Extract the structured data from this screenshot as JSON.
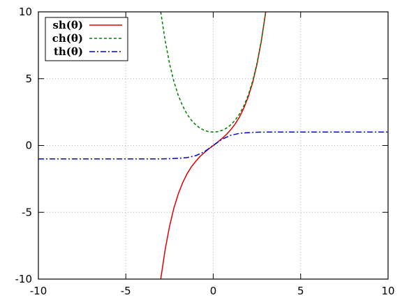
{
  "chart_data": {
    "type": "line",
    "title": "",
    "xlabel": "",
    "ylabel": "",
    "xlim": [
      -10,
      10
    ],
    "ylim": [
      -10,
      10
    ],
    "grid": true,
    "legend_placement": "top-left",
    "x_ticks": [
      {
        "value": -10,
        "label": "-10"
      },
      {
        "value": -5,
        "label": "-5"
      },
      {
        "value": 0,
        "label": "0"
      },
      {
        "value": 5,
        "label": "5"
      },
      {
        "value": 10,
        "label": "10"
      }
    ],
    "y_ticks": [
      {
        "value": -10,
        "label": "-10"
      },
      {
        "value": -5,
        "label": "-5"
      },
      {
        "value": 0,
        "label": "0"
      },
      {
        "value": 5,
        "label": "5"
      },
      {
        "value": 10,
        "label": "10"
      }
    ],
    "series": [
      {
        "name": "sh(θ)",
        "color": "#e00000",
        "dash": "solid",
        "x": [
          -3.0,
          -2.75,
          -2.5,
          -2.25,
          -2.0,
          -1.75,
          -1.5,
          -1.25,
          -1.0,
          -0.75,
          -0.5,
          -0.25,
          0.0,
          0.25,
          0.5,
          0.75,
          1.0,
          1.25,
          1.5,
          1.75,
          2.0,
          2.25,
          2.5,
          2.75,
          3.0
        ],
        "y": [
          -10.0,
          -7.8,
          -6.05,
          -4.69,
          -3.63,
          -2.79,
          -2.13,
          -1.6,
          -1.18,
          -0.82,
          -0.52,
          -0.25,
          0.0,
          0.25,
          0.52,
          0.82,
          1.18,
          1.6,
          2.13,
          2.79,
          3.63,
          4.69,
          6.05,
          7.8,
          10.0
        ]
      },
      {
        "name": "ch(θ)",
        "color": "#008000",
        "dash": "dashed",
        "x": [
          -3.0,
          -2.75,
          -2.5,
          -2.25,
          -2.0,
          -1.75,
          -1.5,
          -1.25,
          -1.0,
          -0.75,
          -0.5,
          -0.25,
          0.0,
          0.25,
          0.5,
          0.75,
          1.0,
          1.25,
          1.5,
          1.75,
          2.0,
          2.25,
          2.5,
          2.75,
          3.0
        ],
        "y": [
          10.0,
          7.86,
          6.13,
          4.8,
          3.76,
          2.96,
          2.35,
          1.89,
          1.54,
          1.29,
          1.13,
          1.03,
          1.0,
          1.03,
          1.13,
          1.29,
          1.54,
          1.89,
          2.35,
          2.96,
          3.76,
          4.8,
          6.13,
          7.86,
          10.0
        ]
      },
      {
        "name": "th(θ)",
        "color": "#0000e0",
        "dash": "dashdot",
        "x": [
          -10,
          -8,
          -6,
          -5,
          -4,
          -3,
          -2.5,
          -2,
          -1.5,
          -1,
          -0.5,
          0,
          0.5,
          1,
          1.5,
          2,
          2.5,
          3,
          4,
          5,
          6,
          8,
          10
        ],
        "y": [
          -1.0,
          -1.0,
          -1.0,
          -1.0,
          -1.0,
          -1.0,
          -0.99,
          -0.96,
          -0.91,
          -0.76,
          -0.46,
          0.0,
          0.46,
          0.76,
          0.91,
          0.96,
          0.99,
          1.0,
          1.0,
          1.0,
          1.0,
          1.0,
          1.0
        ]
      }
    ]
  }
}
